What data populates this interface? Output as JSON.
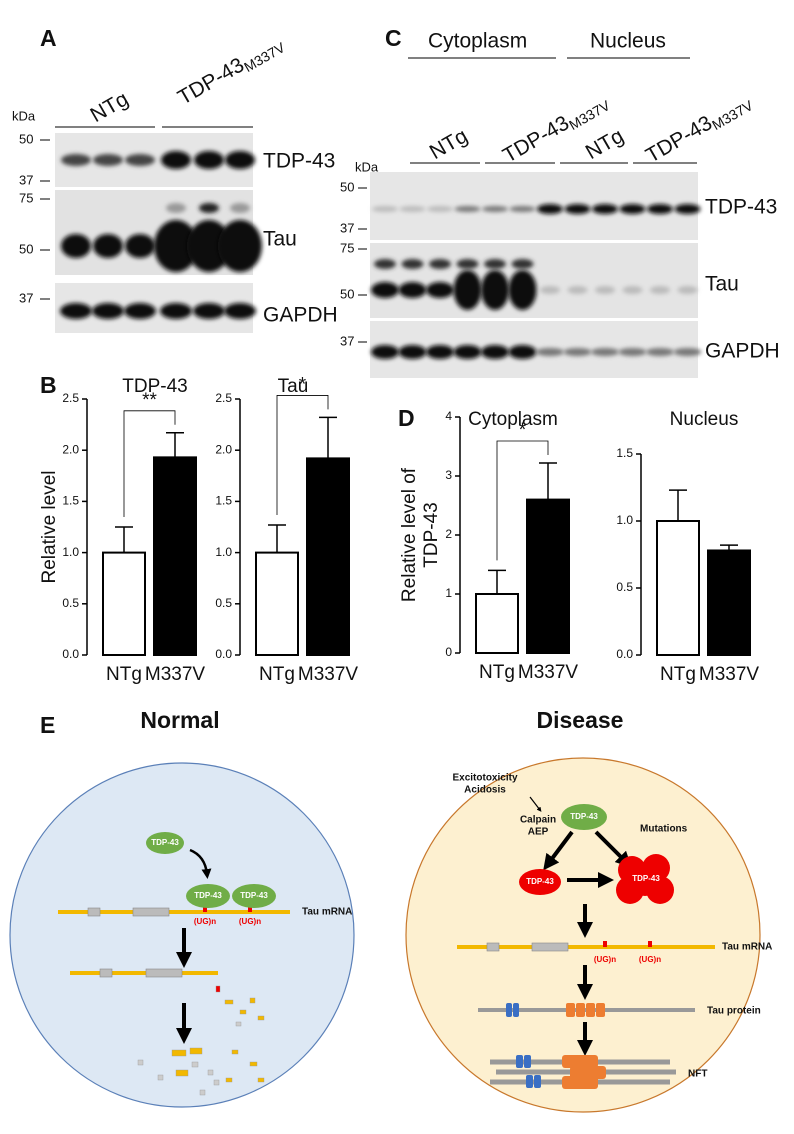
{
  "panel_labels": [
    "A",
    "B",
    "C",
    "D",
    "E"
  ],
  "panel_a": {
    "kda": "kDa",
    "markers": [
      50,
      37,
      75,
      50,
      37
    ],
    "groups": [
      "NTg",
      "TDP-43"
    ],
    "group_subscript": "M337V",
    "rows": [
      "TDP-43",
      "Tau",
      "GAPDH"
    ]
  },
  "panel_c": {
    "fractions": [
      "Cytoplasm",
      "Nucleus"
    ],
    "groups": [
      "NTg",
      "TDP-43",
      "NTg",
      "TDP-43"
    ],
    "group_subscript": "M337V",
    "kda": "kDa",
    "markers": [
      50,
      37,
      75,
      50,
      37
    ],
    "rows": [
      "TDP-43",
      "Tau",
      "GAPDH"
    ]
  },
  "chart_data": [
    {
      "type": "bar",
      "title": "TDP-43",
      "y_label": [
        "Relative level"
      ],
      "categories": [
        "NTg",
        "M337V"
      ],
      "values": [
        1.0,
        1.93
      ],
      "errors": [
        0.25,
        0.24
      ],
      "colors": [
        "#ffffff",
        "#000000"
      ],
      "ylim": [
        0,
        2.5
      ],
      "yticks": [
        {
          "value": 0,
          "label": "0.0"
        },
        {
          "value": 0.5,
          "label": "0.5"
        },
        {
          "value": 1,
          "label": "1.0"
        },
        {
          "value": 1.5,
          "label": "1.5"
        },
        {
          "value": 2,
          "label": "2.0"
        },
        {
          "value": 2.5,
          "label": "2.5"
        }
      ],
      "significance": "**"
    },
    {
      "type": "bar",
      "title": "Tau",
      "categories": [
        "NTg",
        "M337V"
      ],
      "values": [
        1.0,
        1.92
      ],
      "errors": [
        0.27,
        0.4
      ],
      "colors": [
        "#ffffff",
        "#000000"
      ],
      "ylim": [
        0,
        2.5
      ],
      "yticks": [
        {
          "value": 0,
          "label": "0.0"
        },
        {
          "value": 0.5,
          "label": "0.5"
        },
        {
          "value": 1,
          "label": "1.0"
        },
        {
          "value": 1.5,
          "label": "1.5"
        },
        {
          "value": 2,
          "label": "2.0"
        },
        {
          "value": 2.5,
          "label": "2.5"
        }
      ],
      "significance": "*"
    },
    {
      "type": "bar",
      "title": "Cytoplasm",
      "y_label": [
        "Relative level of",
        "TDP-43"
      ],
      "categories": [
        "NTg",
        "M337V"
      ],
      "values": [
        1.0,
        2.6
      ],
      "errors": [
        0.4,
        0.62
      ],
      "colors": [
        "#ffffff",
        "#000000"
      ],
      "ylim": [
        0,
        4
      ],
      "yticks": [
        0,
        1,
        2,
        3,
        4
      ],
      "significance": "*"
    },
    {
      "type": "bar",
      "title": "Nucleus",
      "categories": [
        "NTg",
        "M337V"
      ],
      "values": [
        1.0,
        0.78
      ],
      "errors": [
        0.23,
        0.04
      ],
      "colors": [
        "#ffffff",
        "#000000"
      ],
      "ylim": [
        0,
        1.5
      ],
      "yticks": [
        {
          "value": 0,
          "label": "0.0"
        },
        {
          "value": 0.5,
          "label": "0.5"
        },
        {
          "value": 1,
          "label": "1.0"
        },
        {
          "value": 1.5,
          "label": "1.5"
        }
      ]
    }
  ],
  "panel_e": {
    "normal": {
      "title": "Normal",
      "free_tdp": "TDP-43",
      "bound_tdp": [
        "TDP-43",
        "TDP-43"
      ],
      "ug": [
        "(UG)n",
        "(UG)n"
      ],
      "mrna": "Tau mRNA"
    },
    "disease": {
      "title": "Disease",
      "stress": [
        "Excitotoxicity",
        "Acidosis"
      ],
      "proteases": [
        "Calpain",
        "AEP"
      ],
      "tdp": "TDP-43",
      "mutations": "Mutations",
      "cleaved_tdp": "TDP-43",
      "aggregate_tdp": "TDP-43",
      "mrna": "Tau mRNA",
      "ug": [
        "(UG)n",
        "(UG)n"
      ],
      "protein": "Tau protein",
      "nft": "NFT"
    }
  }
}
